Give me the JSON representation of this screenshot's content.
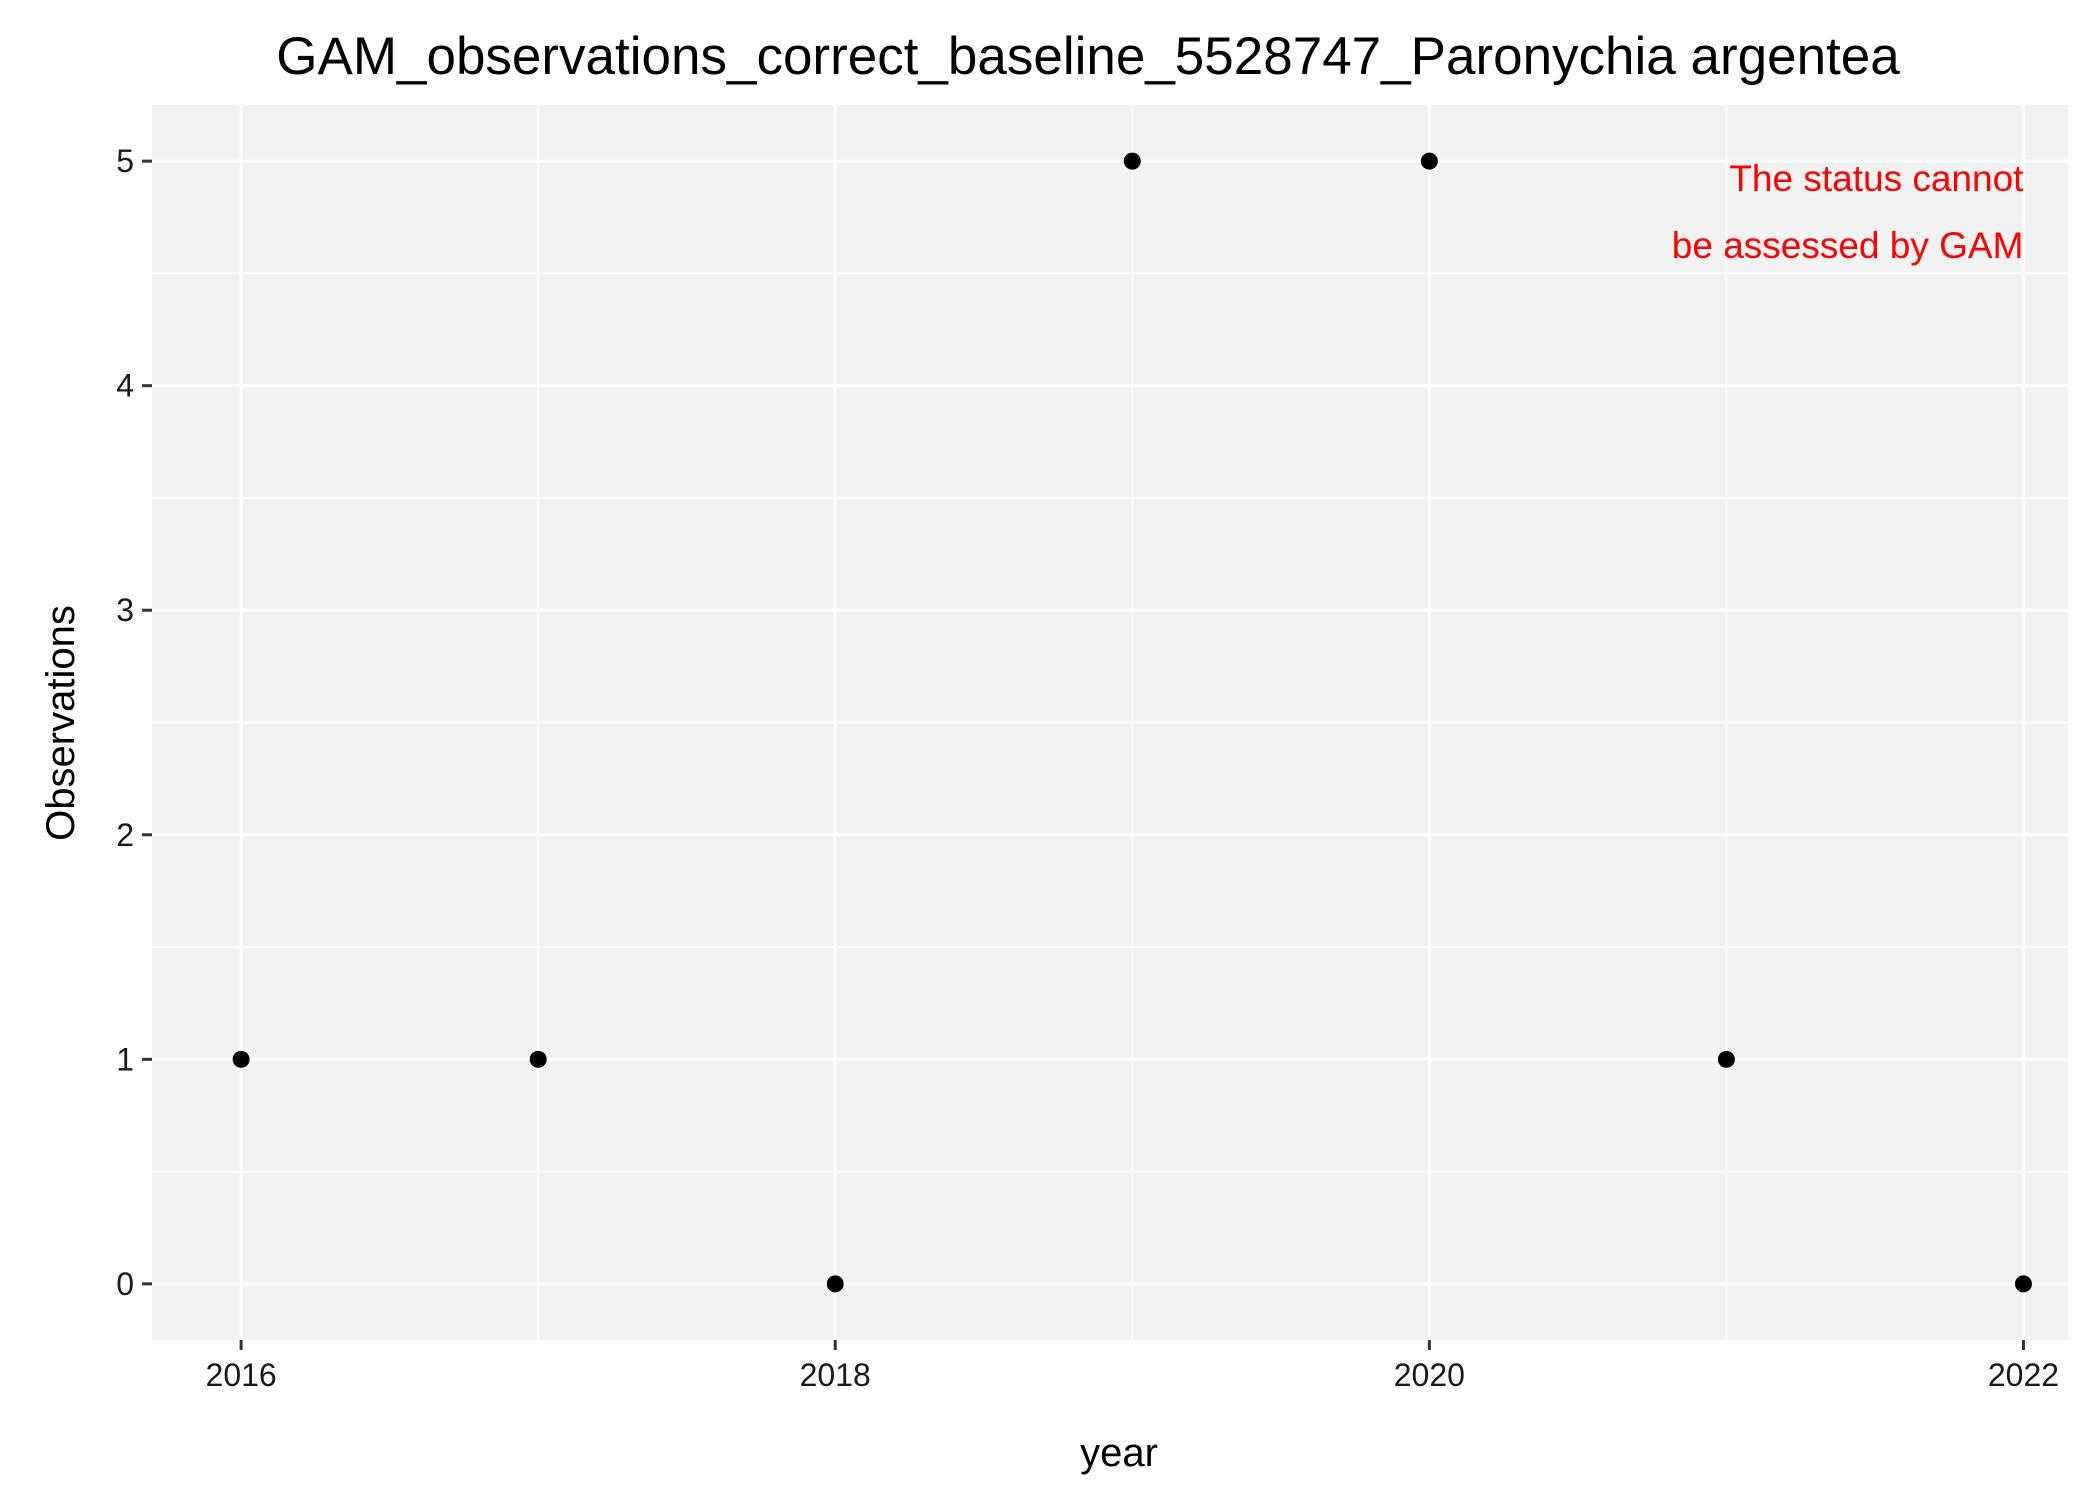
{
  "chart_data": {
    "type": "scatter",
    "title": "GAM_observations_correct_baseline_5528747_Paronychia argentea",
    "xlabel": "year",
    "ylabel": "Observations",
    "x": [
      2016,
      2017,
      2018,
      2019,
      2020,
      2021,
      2022
    ],
    "y": [
      1,
      1,
      0,
      5,
      5,
      1,
      0
    ],
    "xlim": [
      2015.7,
      2022.15
    ],
    "ylim": [
      -0.25,
      5.25
    ],
    "x_ticks": [
      2016,
      2018,
      2020,
      2022
    ],
    "x_tick_labels": [
      "2016",
      "2018",
      "2020",
      "2022"
    ],
    "y_ticks": [
      0,
      1,
      2,
      3,
      4,
      5
    ],
    "y_tick_labels": [
      "0",
      "1",
      "2",
      "3",
      "4",
      "5"
    ],
    "x_minor_ticks": [
      2017,
      2019,
      2021
    ],
    "y_minor_ticks": [
      0.5,
      1.5,
      2.5,
      3.5,
      4.5
    ],
    "grid": true,
    "panel_color": "#f2f2f2",
    "grid_color": "#ffffff",
    "point_color": "#000000",
    "annotation": {
      "lines": [
        "The status cannot",
        "be assessed by GAM"
      ],
      "color": "#ff0000",
      "position": "top-right"
    }
  }
}
